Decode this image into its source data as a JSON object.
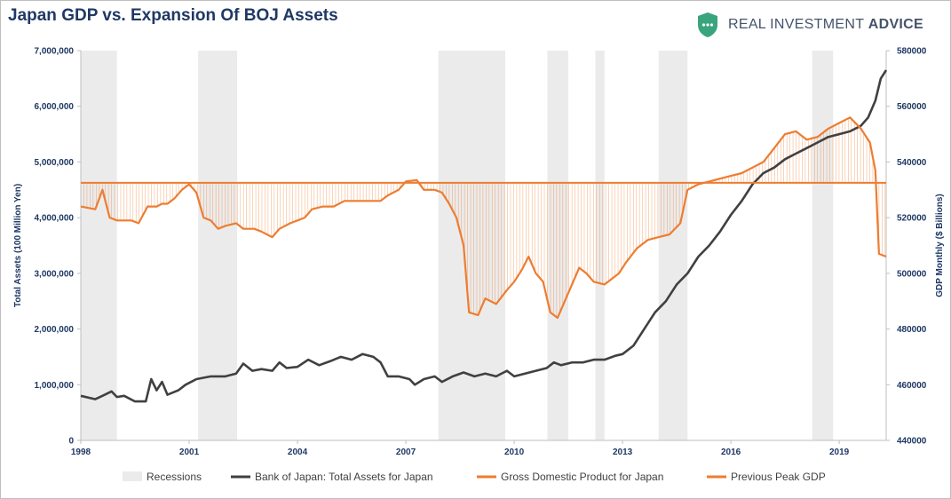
{
  "title": "Japan GDP vs. Expansion Of BOJ Assets",
  "brand": {
    "name_prefix": "REAL INVESTMENT",
    "name_suffix": "ADVICE",
    "icon": "shield-icon"
  },
  "colors": {
    "assets": "#404040",
    "gdp": "#ed7d31",
    "recession": "#ebebeb",
    "peak": "#ed7d31",
    "axis_text": "#1f3864"
  },
  "chart_data": {
    "type": "line",
    "x_ticks": [
      "1998",
      "2001",
      "2004",
      "2007",
      "2010",
      "2013",
      "2016",
      "2019"
    ],
    "xlim": [
      1998,
      2020.3
    ],
    "y_left": {
      "label": "Total Assets (100 Million Yen)",
      "lim": [
        0,
        7000000
      ],
      "ticks": [
        "0",
        "1,000,000",
        "2,000,000",
        "3,000,000",
        "4,000,000",
        "5,000,000",
        "6,000,000",
        "7,000,000"
      ]
    },
    "y_right": {
      "label": "GDP Monthly ($ Billions)",
      "lim": [
        440000,
        580000
      ],
      "ticks": [
        "440000",
        "460000",
        "480000",
        "500000",
        "520000",
        "540000",
        "560000",
        "580000"
      ]
    },
    "recessions": [
      [
        1998.0,
        1999.0
      ],
      [
        2001.25,
        2002.33
      ],
      [
        2007.9,
        2009.75
      ],
      [
        2010.92,
        2011.5
      ],
      [
        2012.25,
        2012.5
      ],
      [
        2014.0,
        2014.8
      ],
      [
        2018.25,
        2018.83
      ]
    ],
    "previous_peak_gdp": 532500,
    "series": [
      {
        "name": "Bank of Japan: Total Assets for Japan",
        "axis": "left",
        "points": [
          [
            1998.0,
            800000
          ],
          [
            1998.4,
            740000
          ],
          [
            1998.6,
            800000
          ],
          [
            1998.85,
            880000
          ],
          [
            1999.0,
            780000
          ],
          [
            1999.2,
            800000
          ],
          [
            1999.5,
            700000
          ],
          [
            1999.8,
            700000
          ],
          [
            1999.95,
            1100000
          ],
          [
            2000.1,
            900000
          ],
          [
            2000.25,
            1050000
          ],
          [
            2000.4,
            820000
          ],
          [
            2000.7,
            900000
          ],
          [
            2000.9,
            1000000
          ],
          [
            2001.2,
            1100000
          ],
          [
            2001.6,
            1150000
          ],
          [
            2002.0,
            1150000
          ],
          [
            2002.3,
            1200000
          ],
          [
            2002.5,
            1380000
          ],
          [
            2002.75,
            1250000
          ],
          [
            2003.0,
            1280000
          ],
          [
            2003.3,
            1250000
          ],
          [
            2003.5,
            1400000
          ],
          [
            2003.7,
            1300000
          ],
          [
            2004.0,
            1320000
          ],
          [
            2004.3,
            1450000
          ],
          [
            2004.6,
            1350000
          ],
          [
            2004.9,
            1420000
          ],
          [
            2005.2,
            1500000
          ],
          [
            2005.5,
            1450000
          ],
          [
            2005.8,
            1550000
          ],
          [
            2006.1,
            1500000
          ],
          [
            2006.3,
            1400000
          ],
          [
            2006.5,
            1150000
          ],
          [
            2006.8,
            1150000
          ],
          [
            2007.1,
            1100000
          ],
          [
            2007.25,
            1000000
          ],
          [
            2007.5,
            1100000
          ],
          [
            2007.8,
            1150000
          ],
          [
            2008.0,
            1050000
          ],
          [
            2008.3,
            1150000
          ],
          [
            2008.6,
            1220000
          ],
          [
            2008.9,
            1150000
          ],
          [
            2009.2,
            1200000
          ],
          [
            2009.5,
            1150000
          ],
          [
            2009.8,
            1250000
          ],
          [
            2010.0,
            1150000
          ],
          [
            2010.3,
            1200000
          ],
          [
            2010.6,
            1250000
          ],
          [
            2010.9,
            1300000
          ],
          [
            2011.1,
            1400000
          ],
          [
            2011.3,
            1350000
          ],
          [
            2011.6,
            1400000
          ],
          [
            2011.9,
            1400000
          ],
          [
            2012.2,
            1450000
          ],
          [
            2012.5,
            1450000
          ],
          [
            2012.8,
            1520000
          ],
          [
            2013.0,
            1550000
          ],
          [
            2013.3,
            1700000
          ],
          [
            2013.6,
            2000000
          ],
          [
            2013.9,
            2300000
          ],
          [
            2014.2,
            2500000
          ],
          [
            2014.5,
            2800000
          ],
          [
            2014.8,
            3000000
          ],
          [
            2015.1,
            3300000
          ],
          [
            2015.4,
            3500000
          ],
          [
            2015.7,
            3750000
          ],
          [
            2016.0,
            4050000
          ],
          [
            2016.3,
            4300000
          ],
          [
            2016.6,
            4600000
          ],
          [
            2016.9,
            4800000
          ],
          [
            2017.2,
            4900000
          ],
          [
            2017.5,
            5050000
          ],
          [
            2017.8,
            5150000
          ],
          [
            2018.1,
            5250000
          ],
          [
            2018.4,
            5350000
          ],
          [
            2018.7,
            5450000
          ],
          [
            2019.0,
            5500000
          ],
          [
            2019.3,
            5550000
          ],
          [
            2019.6,
            5650000
          ],
          [
            2019.8,
            5800000
          ],
          [
            2020.0,
            6100000
          ],
          [
            2020.15,
            6500000
          ],
          [
            2020.3,
            6650000
          ]
        ]
      },
      {
        "name": "Gross Domestic Product for Japan",
        "axis": "right",
        "points": [
          [
            1998.0,
            524000
          ],
          [
            1998.4,
            523000
          ],
          [
            1998.6,
            530000
          ],
          [
            1998.8,
            520000
          ],
          [
            1999.0,
            519000
          ],
          [
            1999.4,
            519000
          ],
          [
            1999.6,
            518000
          ],
          [
            1999.85,
            524000
          ],
          [
            2000.1,
            524000
          ],
          [
            2000.25,
            525000
          ],
          [
            2000.4,
            525000
          ],
          [
            2000.6,
            527000
          ],
          [
            2000.8,
            530000
          ],
          [
            2001.0,
            532000
          ],
          [
            2001.2,
            529000
          ],
          [
            2001.4,
            520000
          ],
          [
            2001.6,
            519000
          ],
          [
            2001.8,
            516000
          ],
          [
            2002.0,
            517000
          ],
          [
            2002.3,
            518000
          ],
          [
            2002.5,
            516000
          ],
          [
            2002.8,
            516000
          ],
          [
            2003.0,
            515000
          ],
          [
            2003.3,
            513000
          ],
          [
            2003.5,
            516000
          ],
          [
            2003.8,
            518000
          ],
          [
            2004.0,
            519000
          ],
          [
            2004.2,
            520000
          ],
          [
            2004.4,
            523000
          ],
          [
            2004.7,
            524000
          ],
          [
            2005.0,
            524000
          ],
          [
            2005.3,
            526000
          ],
          [
            2005.6,
            526000
          ],
          [
            2006.0,
            526000
          ],
          [
            2006.3,
            526000
          ],
          [
            2006.5,
            528000
          ],
          [
            2006.8,
            530000
          ],
          [
            2007.0,
            533000
          ],
          [
            2007.3,
            533500
          ],
          [
            2007.5,
            530000
          ],
          [
            2007.8,
            530000
          ],
          [
            2008.0,
            529000
          ],
          [
            2008.2,
            525000
          ],
          [
            2008.4,
            520000
          ],
          [
            2008.6,
            510000
          ],
          [
            2008.75,
            486000
          ],
          [
            2009.0,
            485000
          ],
          [
            2009.2,
            491000
          ],
          [
            2009.5,
            489000
          ],
          [
            2009.8,
            494000
          ],
          [
            2010.0,
            497000
          ],
          [
            2010.2,
            501000
          ],
          [
            2010.4,
            506000
          ],
          [
            2010.6,
            500000
          ],
          [
            2010.8,
            497000
          ],
          [
            2011.0,
            486000
          ],
          [
            2011.2,
            484000
          ],
          [
            2011.5,
            493000
          ],
          [
            2011.8,
            502000
          ],
          [
            2012.0,
            500000
          ],
          [
            2012.2,
            497000
          ],
          [
            2012.5,
            496000
          ],
          [
            2012.7,
            498000
          ],
          [
            2012.9,
            500000
          ],
          [
            2013.1,
            504000
          ],
          [
            2013.4,
            509000
          ],
          [
            2013.7,
            512000
          ],
          [
            2014.0,
            513000
          ],
          [
            2014.3,
            514000
          ],
          [
            2014.6,
            518000
          ],
          [
            2014.8,
            530000
          ],
          [
            2015.1,
            532000
          ],
          [
            2015.4,
            533000
          ],
          [
            2015.7,
            534000
          ],
          [
            2016.0,
            535000
          ],
          [
            2016.3,
            536000
          ],
          [
            2016.6,
            538000
          ],
          [
            2016.9,
            540000
          ],
          [
            2017.2,
            545000
          ],
          [
            2017.5,
            550000
          ],
          [
            2017.8,
            551000
          ],
          [
            2018.1,
            548000
          ],
          [
            2018.4,
            549000
          ],
          [
            2018.7,
            552000
          ],
          [
            2019.0,
            554000
          ],
          [
            2019.3,
            556000
          ],
          [
            2019.6,
            552000
          ],
          [
            2019.85,
            547000
          ],
          [
            2020.0,
            537000
          ],
          [
            2020.1,
            507000
          ],
          [
            2020.3,
            506000
          ]
        ]
      },
      {
        "name": "Previous Peak GDP",
        "axis": "right",
        "points": [
          [
            1998.0,
            532500
          ],
          [
            2020.3,
            532500
          ]
        ]
      }
    ],
    "legend": {
      "placement": "bottom",
      "items": [
        "Recessions",
        "Bank of Japan: Total Assets for Japan",
        "Gross Domestic Product for Japan",
        "Previous Peak GDP"
      ]
    }
  }
}
